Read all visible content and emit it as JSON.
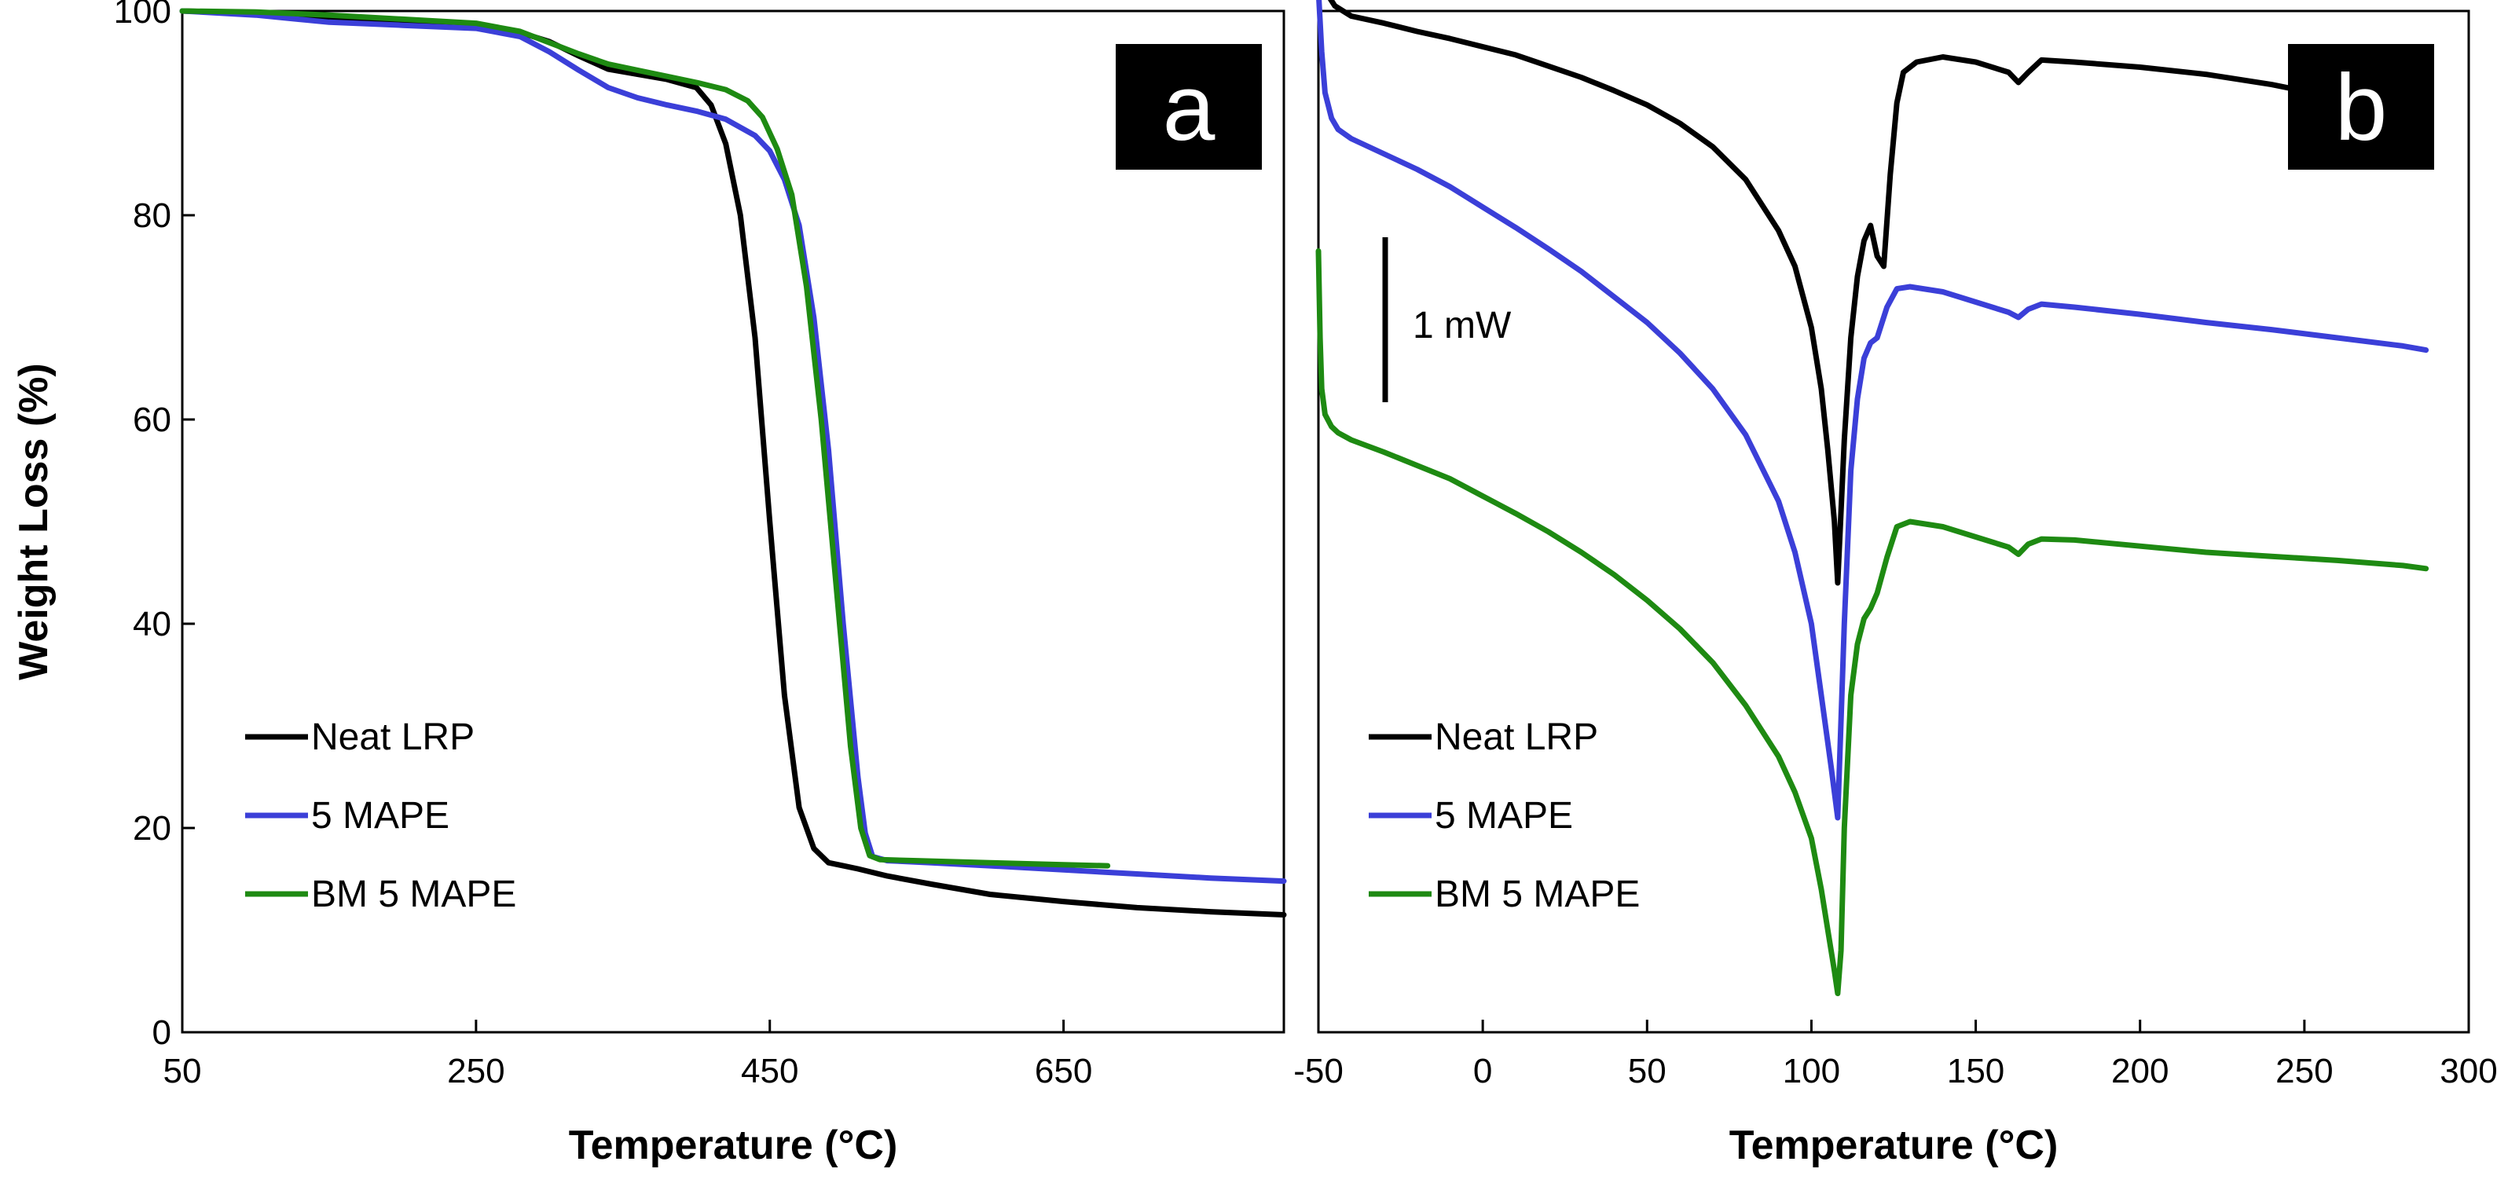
{
  "chart_data": [
    {
      "panel": "a",
      "type": "line",
      "title": "",
      "xlabel": "Temperature (°C)",
      "ylabel": "Weight Loss (%)",
      "xlim": [
        50,
        800
      ],
      "ylim": [
        0,
        100
      ],
      "xticks": [
        50,
        250,
        450,
        650
      ],
      "yticks": [
        0,
        20,
        40,
        60,
        80,
        100
      ],
      "legend_position": "bottom-left",
      "series": [
        {
          "name": "Neat LRP",
          "color": "#000000",
          "x": [
            50,
            100,
            150,
            200,
            250,
            280,
            300,
            320,
            340,
            360,
            380,
            400,
            410,
            420,
            430,
            440,
            450,
            460,
            470,
            480,
            490,
            500,
            510,
            530,
            560,
            600,
            650,
            700,
            750,
            800
          ],
          "y": [
            100,
            99.8,
            99.3,
            98.8,
            98.5,
            97.9,
            97.0,
            95.6,
            94.3,
            93.8,
            93.3,
            92.5,
            90.8,
            87.0,
            80.0,
            68.0,
            50.0,
            33.0,
            22.0,
            18.0,
            16.6,
            16.3,
            16.0,
            15.3,
            14.5,
            13.5,
            12.8,
            12.2,
            11.8,
            11.5
          ]
        },
        {
          "name": "5 MAPE",
          "color": "#3b3fd8",
          "x": [
            50,
            100,
            150,
            200,
            250,
            280,
            300,
            320,
            340,
            360,
            380,
            400,
            420,
            440,
            450,
            460,
            470,
            480,
            490,
            500,
            510,
            515,
            520,
            530,
            560,
            600,
            650,
            700,
            750,
            800
          ],
          "y": [
            100,
            99.6,
            98.9,
            98.6,
            98.3,
            97.5,
            96.0,
            94.2,
            92.5,
            91.5,
            90.8,
            90.2,
            89.4,
            87.8,
            86.3,
            83.5,
            79.0,
            70.0,
            57.0,
            40.0,
            25.0,
            19.5,
            17.2,
            16.8,
            16.6,
            16.3,
            15.9,
            15.5,
            15.1,
            14.8
          ]
        },
        {
          "name": "BM 5 MAPE",
          "color": "#1e8a12",
          "x": [
            50,
            100,
            150,
            200,
            250,
            280,
            300,
            320,
            340,
            360,
            380,
            400,
            420,
            435,
            445,
            455,
            465,
            475,
            485,
            495,
            505,
            512,
            518,
            525,
            550,
            600,
            650,
            680
          ],
          "y": [
            100,
            99.9,
            99.6,
            99.2,
            98.8,
            98.0,
            96.9,
            95.8,
            94.8,
            94.2,
            93.6,
            93.0,
            92.3,
            91.2,
            89.6,
            86.5,
            82.0,
            73.0,
            60.0,
            44.0,
            28.0,
            20.0,
            17.3,
            16.9,
            16.8,
            16.6,
            16.4,
            16.3
          ]
        }
      ],
      "annotations": []
    },
    {
      "panel": "b",
      "type": "line",
      "title": "",
      "xlabel": "Temperature (°C)",
      "ylabel": "",
      "xlim": [
        -50,
        300
      ],
      "ylim": [
        0,
        100
      ],
      "xticks": [
        -50,
        0,
        50,
        100,
        150,
        200,
        250,
        300
      ],
      "yticks_shown": false,
      "legend_position": "bottom-left",
      "scale_bar_label": "1 mW",
      "series": [
        {
          "name": "Neat LRP",
          "color": "#000000",
          "x": [
            -50,
            -45,
            -40,
            -30,
            -20,
            -10,
            0,
            10,
            20,
            30,
            40,
            50,
            60,
            70,
            80,
            90,
            95,
            100,
            103,
            105,
            107,
            108,
            110,
            112,
            114,
            116,
            118,
            120,
            122,
            124,
            126,
            128,
            132,
            140,
            150,
            160,
            163,
            166,
            170,
            180,
            200,
            220,
            240,
            260,
            275
          ],
          "y": [
            103,
            100.5,
            99.5,
            98.8,
            98.0,
            97.3,
            96.5,
            95.7,
            94.6,
            93.5,
            92.2,
            90.8,
            89.0,
            86.7,
            83.5,
            78.5,
            75.0,
            69.0,
            63.0,
            57.0,
            50.0,
            44.0,
            58.0,
            68.0,
            74.0,
            77.5,
            79.0,
            76.0,
            75.0,
            84.0,
            91.0,
            94.0,
            95.0,
            95.5,
            95.0,
            94.0,
            93.0,
            94.0,
            95.2,
            95.0,
            94.5,
            93.8,
            92.8,
            91.5,
            90.5
          ]
        },
        {
          "name": "5 MAPE",
          "color": "#3b3fd8",
          "x": [
            -50,
            -49,
            -48,
            -46,
            -44,
            -40,
            -30,
            -20,
            -10,
            0,
            10,
            20,
            30,
            40,
            50,
            60,
            70,
            80,
            90,
            95,
            100,
            103,
            106,
            108,
            110,
            112,
            114,
            116,
            118,
            120,
            123,
            126,
            130,
            140,
            150,
            160,
            163,
            166,
            170,
            180,
            200,
            220,
            240,
            260,
            280,
            287
          ],
          "y": [
            102,
            96.0,
            92.0,
            89.5,
            88.4,
            87.5,
            86.0,
            84.5,
            82.8,
            80.8,
            78.8,
            76.7,
            74.5,
            72.0,
            69.5,
            66.5,
            63.0,
            58.5,
            52.0,
            47.0,
            40.0,
            33.0,
            26.0,
            21.0,
            40.0,
            55.0,
            62.0,
            66.0,
            67.5,
            68.0,
            71.0,
            72.8,
            73.0,
            72.5,
            71.5,
            70.5,
            70.0,
            70.8,
            71.3,
            71.0,
            70.3,
            69.5,
            68.8,
            68.0,
            67.2,
            66.8
          ]
        },
        {
          "name": "BM 5 MAPE",
          "color": "#1e8a12",
          "x": [
            -50,
            -49.5,
            -49,
            -48,
            -46,
            -44,
            -40,
            -30,
            -20,
            -10,
            0,
            10,
            20,
            30,
            40,
            50,
            60,
            70,
            80,
            90,
            95,
            100,
            103,
            105,
            107,
            108,
            109,
            110,
            112,
            114,
            116,
            118,
            120,
            123,
            126,
            130,
            140,
            150,
            160,
            163,
            166,
            170,
            180,
            200,
            220,
            240,
            260,
            280,
            287
          ],
          "y": [
            76.5,
            68.0,
            63.0,
            60.5,
            59.3,
            58.7,
            58.0,
            56.8,
            55.5,
            54.2,
            52.5,
            50.8,
            49.0,
            47.0,
            44.8,
            42.3,
            39.5,
            36.2,
            32.0,
            27.0,
            23.5,
            19.0,
            14.0,
            10.0,
            6.0,
            3.8,
            8.0,
            20.0,
            33.0,
            38.0,
            40.5,
            41.5,
            43.0,
            46.5,
            49.5,
            50.0,
            49.5,
            48.5,
            47.5,
            46.8,
            47.8,
            48.3,
            48.2,
            47.6,
            47.0,
            46.6,
            46.2,
            45.7,
            45.4
          ]
        }
      ],
      "annotations": []
    }
  ]
}
